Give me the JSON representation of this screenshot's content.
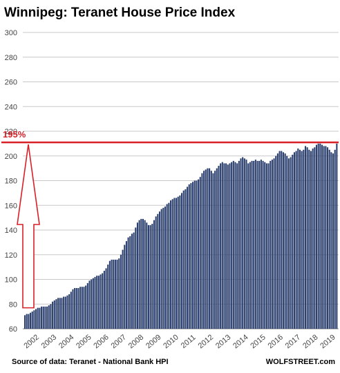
{
  "chart_data": {
    "type": "bar",
    "title": "Winnipeg: Teranet House Price Index",
    "ylim": [
      60,
      300
    ],
    "yticks": [
      60,
      80,
      100,
      120,
      140,
      160,
      180,
      200,
      220,
      240,
      260,
      280,
      300
    ],
    "year_labels": [
      "2002",
      "2003",
      "2004",
      "2005",
      "2006",
      "2007",
      "2008",
      "2009",
      "2010",
      "2011",
      "2012",
      "2013",
      "2014",
      "2015",
      "2016",
      "2017",
      "2018",
      "2019"
    ],
    "grid": true,
    "bar_color": "#2b3f6e",
    "annotation": {
      "label": "195%",
      "line_value": 211,
      "arrow_from": 77,
      "arrow_to": 211,
      "color": "#d81f26"
    },
    "source": "Source of data: Teranet - National Bank HPI",
    "brand": "WOLFSTREET.com",
    "values": [
      71,
      72,
      72,
      73,
      74,
      75,
      76,
      77,
      77,
      78,
      78,
      78,
      78,
      79,
      80,
      82,
      83,
      84,
      85,
      85,
      85,
      86,
      86,
      87,
      88,
      90,
      92,
      93,
      93,
      93,
      94,
      94,
      94,
      95,
      97,
      99,
      100,
      101,
      102,
      103,
      103,
      104,
      105,
      107,
      109,
      112,
      115,
      116,
      116,
      116,
      116,
      117,
      120,
      124,
      128,
      131,
      134,
      135,
      137,
      138,
      142,
      146,
      148,
      149,
      149,
      148,
      146,
      144,
      144,
      145,
      148,
      151,
      153,
      155,
      157,
      158,
      159,
      161,
      162,
      164,
      165,
      166,
      166,
      167,
      168,
      170,
      172,
      173,
      175,
      177,
      178,
      179,
      180,
      180,
      181,
      183,
      186,
      188,
      189,
      190,
      190,
      188,
      186,
      188,
      190,
      192,
      194,
      195,
      194,
      194,
      193,
      194,
      195,
      196,
      195,
      194,
      196,
      198,
      199,
      198,
      197,
      194,
      195,
      196,
      196,
      197,
      196,
      196,
      197,
      196,
      195,
      194,
      194,
      196,
      197,
      198,
      200,
      202,
      204,
      204,
      203,
      202,
      200,
      198,
      199,
      201,
      203,
      204,
      206,
      205,
      204,
      205,
      208,
      207,
      205,
      204,
      206,
      207,
      209,
      210,
      210,
      209,
      208,
      208,
      207,
      205,
      203,
      202,
      205,
      210
    ]
  }
}
